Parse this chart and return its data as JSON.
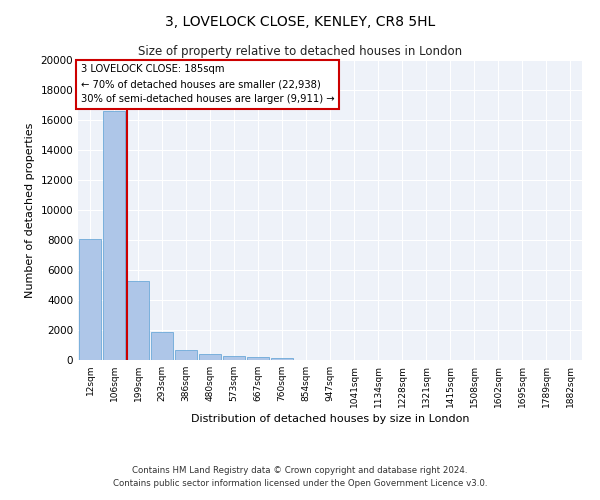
{
  "title": "3, LOVELOCK CLOSE, KENLEY, CR8 5HL",
  "subtitle": "Size of property relative to detached houses in London",
  "xlabel": "Distribution of detached houses by size in London",
  "ylabel": "Number of detached properties",
  "categories": [
    "12sqm",
    "106sqm",
    "199sqm",
    "293sqm",
    "386sqm",
    "480sqm",
    "573sqm",
    "667sqm",
    "760sqm",
    "854sqm",
    "947sqm",
    "1041sqm",
    "1134sqm",
    "1228sqm",
    "1321sqm",
    "1415sqm",
    "1508sqm",
    "1602sqm",
    "1695sqm",
    "1789sqm",
    "1882sqm"
  ],
  "values": [
    8100,
    16600,
    5300,
    1850,
    700,
    370,
    280,
    200,
    150,
    0,
    0,
    0,
    0,
    0,
    0,
    0,
    0,
    0,
    0,
    0,
    0
  ],
  "bar_color": "#aec6e8",
  "bar_edge_color": "#5a9fd4",
  "vline_color": "#cc0000",
  "vline_bar_index": 2,
  "annotation_text": "3 LOVELOCK CLOSE: 185sqm\n← 70% of detached houses are smaller (22,938)\n30% of semi-detached houses are larger (9,911) →",
  "annotation_box_color": "#cc0000",
  "ylim": [
    0,
    20000
  ],
  "yticks": [
    0,
    2000,
    4000,
    6000,
    8000,
    10000,
    12000,
    14000,
    16000,
    18000,
    20000
  ],
  "background_color": "#eef2f9",
  "footer_line1": "Contains HM Land Registry data © Crown copyright and database right 2024.",
  "footer_line2": "Contains public sector information licensed under the Open Government Licence v3.0."
}
